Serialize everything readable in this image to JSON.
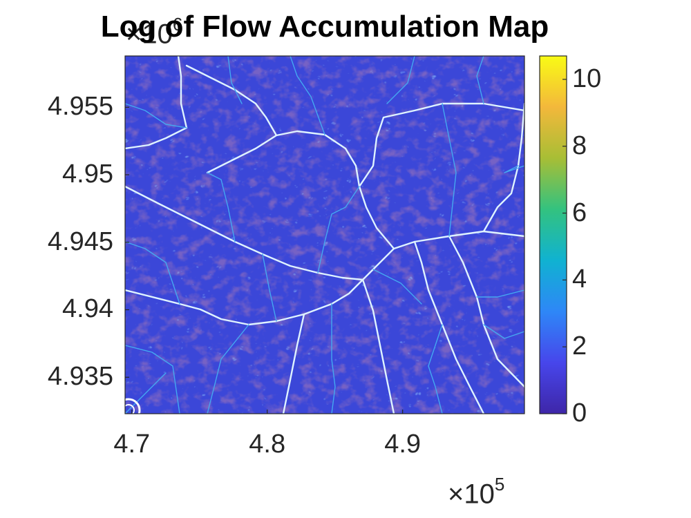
{
  "title": "Log of Flow Accumulation Map",
  "axes": {
    "x_exponent_base": "×10",
    "x_exponent_power": "5",
    "y_exponent_base": "×10",
    "y_exponent_power": "6",
    "x_ticks": [
      {
        "value": 4.7,
        "label": "4.7"
      },
      {
        "value": 4.8,
        "label": "4.8"
      },
      {
        "value": 4.9,
        "label": "4.9"
      }
    ],
    "y_ticks": [
      {
        "value": 4.955,
        "label": "4.955"
      },
      {
        "value": 4.95,
        "label": "4.95"
      },
      {
        "value": 4.945,
        "label": "4.945"
      },
      {
        "value": 4.94,
        "label": "4.94"
      },
      {
        "value": 4.935,
        "label": "4.935"
      }
    ],
    "xlim": [
      4.695,
      4.99
    ],
    "ylim": [
      4.9323,
      4.9588
    ]
  },
  "colorbar": {
    "range": [
      0,
      10.7
    ],
    "ticks": [
      {
        "value": 0,
        "label": "0"
      },
      {
        "value": 2,
        "label": "2"
      },
      {
        "value": 4,
        "label": "4"
      },
      {
        "value": 6,
        "label": "6"
      },
      {
        "value": 8,
        "label": "8"
      },
      {
        "value": 10,
        "label": "10"
      }
    ],
    "colormap": [
      "#3e26a8",
      "#4746eb",
      "#2e87f7",
      "#10b2d1",
      "#33c27f",
      "#a8be35",
      "#f3b83b",
      "#f9fb15"
    ]
  },
  "colors": {
    "background": "#3b47d8",
    "valley_dark": "#2f1f90",
    "stream_light": "#dff3ff",
    "stream_mid": "#44a8f0",
    "axis": "#262626"
  }
}
